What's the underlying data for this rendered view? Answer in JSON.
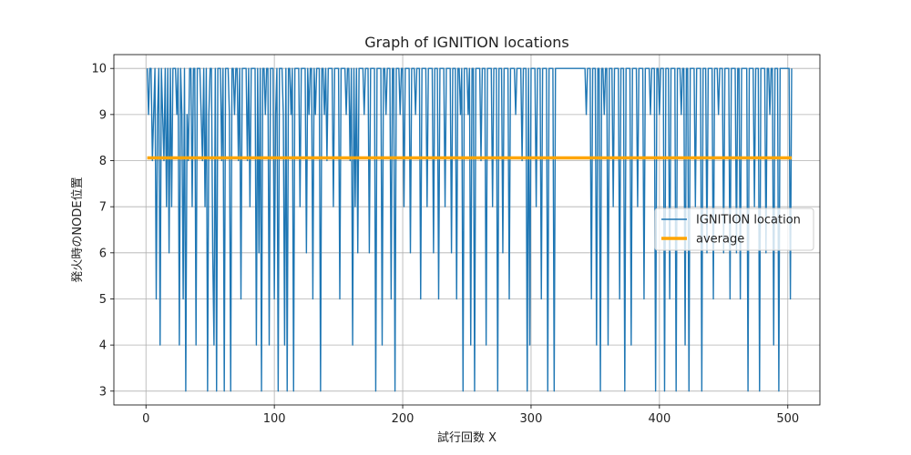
{
  "chart_data": {
    "type": "line",
    "title": "Graph of IGNITION locations",
    "xlabel": "試行回数 X",
    "ylabel": "発火時のNODE位置",
    "xlim": [
      -25,
      525
    ],
    "ylim": [
      2.7,
      10.3
    ],
    "x_ticks": [
      0,
      100,
      200,
      300,
      400,
      500
    ],
    "y_ticks": [
      3,
      4,
      5,
      6,
      7,
      8,
      9,
      10
    ],
    "grid": true,
    "legend_position": "center-right",
    "colors": {
      "series": "#1f77b4",
      "average": "#ffa500",
      "grid": "#b0b0b0",
      "frame": "#000000"
    },
    "x_start": 1,
    "series": [
      {
        "name": "IGNITION location",
        "values": [
          10,
          9,
          10,
          10,
          8,
          9,
          10,
          5,
          9,
          10,
          4,
          10,
          9,
          8,
          10,
          7,
          10,
          6,
          10,
          7,
          10,
          10,
          10,
          9,
          10,
          4,
          10,
          9,
          5,
          10,
          3,
          9,
          8,
          10,
          10,
          7,
          10,
          10,
          4,
          10,
          10,
          10,
          9,
          8,
          10,
          7,
          10,
          3,
          9,
          10,
          10,
          6,
          4,
          10,
          3,
          10,
          10,
          10,
          8,
          10,
          3,
          10,
          10,
          10,
          9,
          3,
          10,
          10,
          9,
          10,
          10,
          8,
          10,
          5,
          10,
          10,
          10,
          10,
          8,
          10,
          7,
          10,
          10,
          10,
          10,
          4,
          10,
          6,
          10,
          3,
          10,
          10,
          9,
          10,
          10,
          4,
          10,
          10,
          10,
          5,
          9,
          10,
          3,
          10,
          10,
          10,
          9,
          4,
          10,
          3,
          10,
          10,
          9,
          10,
          3,
          10,
          10,
          10,
          10,
          7,
          10,
          10,
          10,
          10,
          6,
          10,
          9,
          10,
          10,
          5,
          10,
          9,
          10,
          10,
          10,
          3,
          10,
          10,
          9,
          10,
          8,
          10,
          10,
          10,
          10,
          7,
          10,
          10,
          10,
          10,
          5,
          10,
          10,
          10,
          10,
          9,
          10,
          10,
          8,
          10,
          4,
          10,
          7,
          10,
          6,
          10,
          10,
          10,
          10,
          9,
          10,
          10,
          10,
          6,
          10,
          10,
          10,
          10,
          3,
          10,
          10,
          10,
          10,
          4,
          10,
          10,
          9,
          10,
          10,
          10,
          5,
          10,
          10,
          3,
          10,
          10,
          10,
          9,
          10,
          10,
          7,
          10,
          10,
          10,
          10,
          6,
          10,
          10,
          10,
          9,
          10,
          10,
          10,
          5,
          10,
          10,
          10,
          10,
          7,
          10,
          10,
          10,
          10,
          6,
          10,
          10,
          10,
          5,
          10,
          10,
          10,
          10,
          7,
          10,
          10,
          10,
          10,
          6,
          10,
          10,
          10,
          5,
          10,
          10,
          9,
          10,
          3,
          10,
          10,
          10,
          9,
          10,
          4,
          10,
          10,
          3,
          10,
          10,
          10,
          10,
          8,
          10,
          10,
          10,
          4,
          10,
          10,
          10,
          10,
          7,
          10,
          10,
          10,
          3,
          10,
          10,
          10,
          6,
          10,
          10,
          10,
          10,
          5,
          10,
          10,
          10,
          10,
          9,
          10,
          10,
          10,
          10,
          8,
          10,
          10,
          10,
          3,
          10,
          4,
          10,
          10,
          10,
          10,
          7,
          10,
          10,
          10,
          5,
          10,
          10,
          10,
          10,
          3,
          10,
          10,
          10,
          10,
          3,
          10,
          10,
          10,
          10,
          10,
          10,
          10,
          10,
          10,
          10,
          10,
          10,
          10,
          10,
          10,
          10,
          10,
          10,
          10,
          10,
          10,
          10,
          10,
          10,
          9,
          10,
          10,
          10,
          5,
          10,
          10,
          10,
          4,
          10,
          10,
          3,
          10,
          10,
          9,
          10,
          10,
          4,
          10,
          10,
          10,
          7,
          10,
          10,
          10,
          10,
          5,
          10,
          10,
          10,
          3,
          10,
          10,
          10,
          10,
          4,
          10,
          10,
          10,
          10,
          7,
          10,
          10,
          10,
          10,
          5,
          10,
          10,
          10,
          10,
          9,
          10,
          10,
          10,
          3,
          10,
          10,
          9,
          10,
          10,
          10,
          3,
          10,
          10,
          10,
          5,
          10,
          10,
          10,
          10,
          3,
          10,
          10,
          10,
          9,
          10,
          10,
          4,
          10,
          10,
          3,
          10,
          10,
          10,
          10,
          7,
          10,
          10,
          10,
          10,
          3,
          10,
          10,
          10,
          6,
          10,
          10,
          10,
          10,
          5,
          10,
          10,
          10,
          9,
          10,
          10,
          10,
          6,
          10,
          10,
          10,
          10,
          5,
          10,
          10,
          10,
          10,
          6,
          10,
          10,
          5,
          10,
          10,
          10,
          10,
          10,
          3,
          10,
          10,
          10,
          10,
          7,
          10,
          10,
          10,
          3,
          10,
          10,
          10,
          10,
          6,
          10,
          10,
          9,
          10,
          10,
          4,
          10,
          10,
          10,
          3,
          10,
          10,
          10,
          10,
          10,
          10,
          10,
          10,
          5,
          10
        ]
      },
      {
        "name": "average",
        "constant": 8.06
      }
    ]
  }
}
